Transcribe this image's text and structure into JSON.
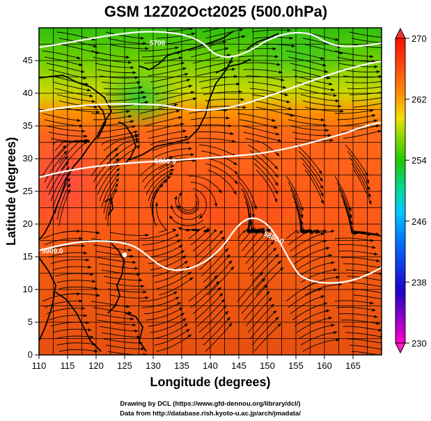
{
  "title": "GSM 12Z02Oct2025 (500.0hPa)",
  "x_axis": {
    "label": "Longitude (degrees)",
    "ticks": [
      "110",
      "115",
      "120",
      "125",
      "130",
      "135",
      "140",
      "145",
      "150",
      "155",
      "160",
      "165"
    ]
  },
  "y_axis": {
    "label": "Latitude  (degrees)",
    "ticks": [
      "0",
      "5",
      "10",
      "15",
      "20",
      "25",
      "30",
      "35",
      "40",
      "45"
    ]
  },
  "colorbar": {
    "ticks": [
      "230",
      "238",
      "246",
      "254",
      "262",
      "270"
    ],
    "min": 230,
    "max": 270
  },
  "contour_labels": [
    "5700",
    "5800.0",
    "5800.0",
    "5900.0"
  ],
  "credits": {
    "line1": "Drawing by DCL (https://www.gfd-dennou.org/library/dcl/)",
    "line2": "Data from http://database.rish.kyoto-u.ac.jp/arch/jmadata/"
  },
  "map_data": {
    "lon_range": [
      110,
      170
    ],
    "lat_range": [
      0,
      50
    ],
    "marker": {
      "lon": 125.0,
      "lat": 15.3
    }
  },
  "colors": {
    "contour": "#ffffff",
    "coastline": "#000000",
    "streamline": "#000000",
    "grid": "#000000",
    "marker": "#ffffff"
  }
}
